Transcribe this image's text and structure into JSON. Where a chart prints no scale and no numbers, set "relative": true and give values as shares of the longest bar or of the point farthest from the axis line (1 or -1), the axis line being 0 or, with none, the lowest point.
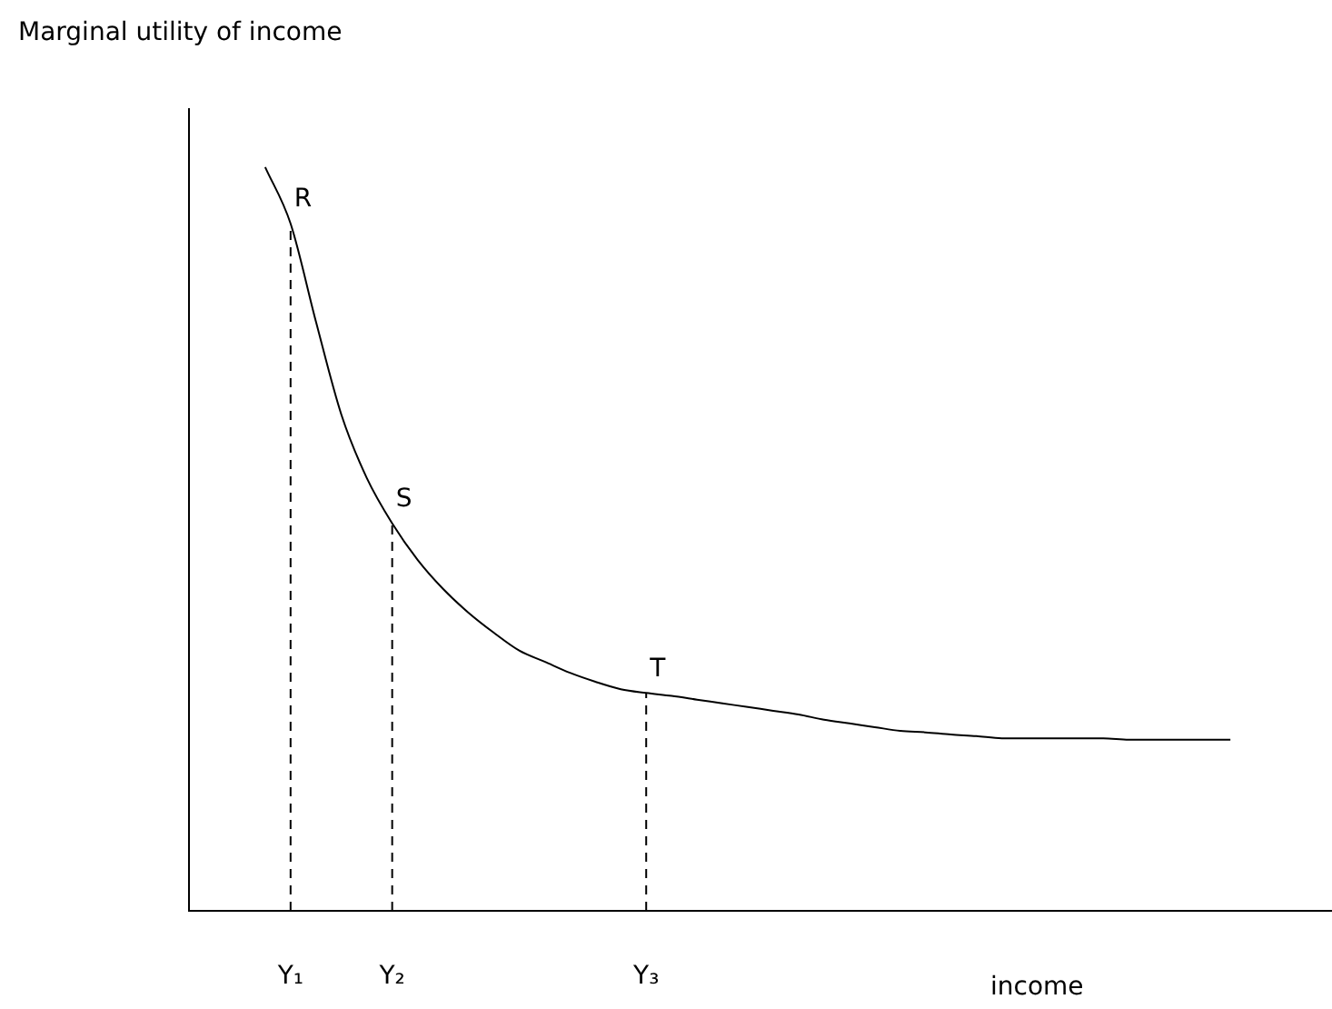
{
  "chart_data": {
    "type": "line",
    "relative": true,
    "xlabel": "income",
    "ylabel": "Marginal utility of income",
    "marker": "none",
    "categories": [
      null,
      null,
      null,
      null,
      "Y₁",
      null,
      null,
      null,
      "Y₂",
      null,
      null,
      null,
      null,
      null,
      null,
      null,
      null,
      null,
      "Y₃",
      null,
      null,
      null,
      null,
      null,
      null,
      null,
      null,
      null,
      null,
      null,
      null,
      null,
      null,
      null,
      null,
      null,
      null,
      null,
      null,
      null,
      null,
      null,
      null,
      null,
      null,
      null
    ],
    "series": [
      {
        "color": "#000000",
        "values": [
          null,
          null,
          null,
          1.0,
          0.924,
          0.792,
          0.667,
          0.582,
          0.521,
          0.472,
          0.433,
          0.401,
          0.374,
          0.35,
          0.335,
          0.32,
          0.308,
          0.298,
          0.293,
          0.289,
          0.284,
          0.279,
          0.274,
          0.269,
          0.264,
          0.257,
          0.252,
          0.247,
          0.242,
          0.24,
          0.237,
          0.235,
          0.232,
          0.232,
          0.232,
          0.232,
          0.232,
          0.23,
          0.23,
          0.23,
          0.23,
          0.23,
          null,
          null,
          null,
          null
        ]
      }
    ],
    "ref_lines": [
      {
        "axis": "x",
        "value": "Y₁",
        "color": "#000000",
        "line_style": "dashed"
      },
      {
        "axis": "x",
        "value": "Y₂",
        "color": "#000000",
        "line_style": "dashed"
      },
      {
        "axis": "x",
        "value": "Y₃",
        "color": "#000000",
        "line_style": "dashed"
      }
    ],
    "annotations": [
      {
        "text": "R",
        "x": "Y₁",
        "y": 0.924
      },
      {
        "text": "S",
        "x": "Y₂",
        "y": 0.521
      },
      {
        "text": "T",
        "x": "Y₃",
        "y": 0.293
      }
    ]
  }
}
